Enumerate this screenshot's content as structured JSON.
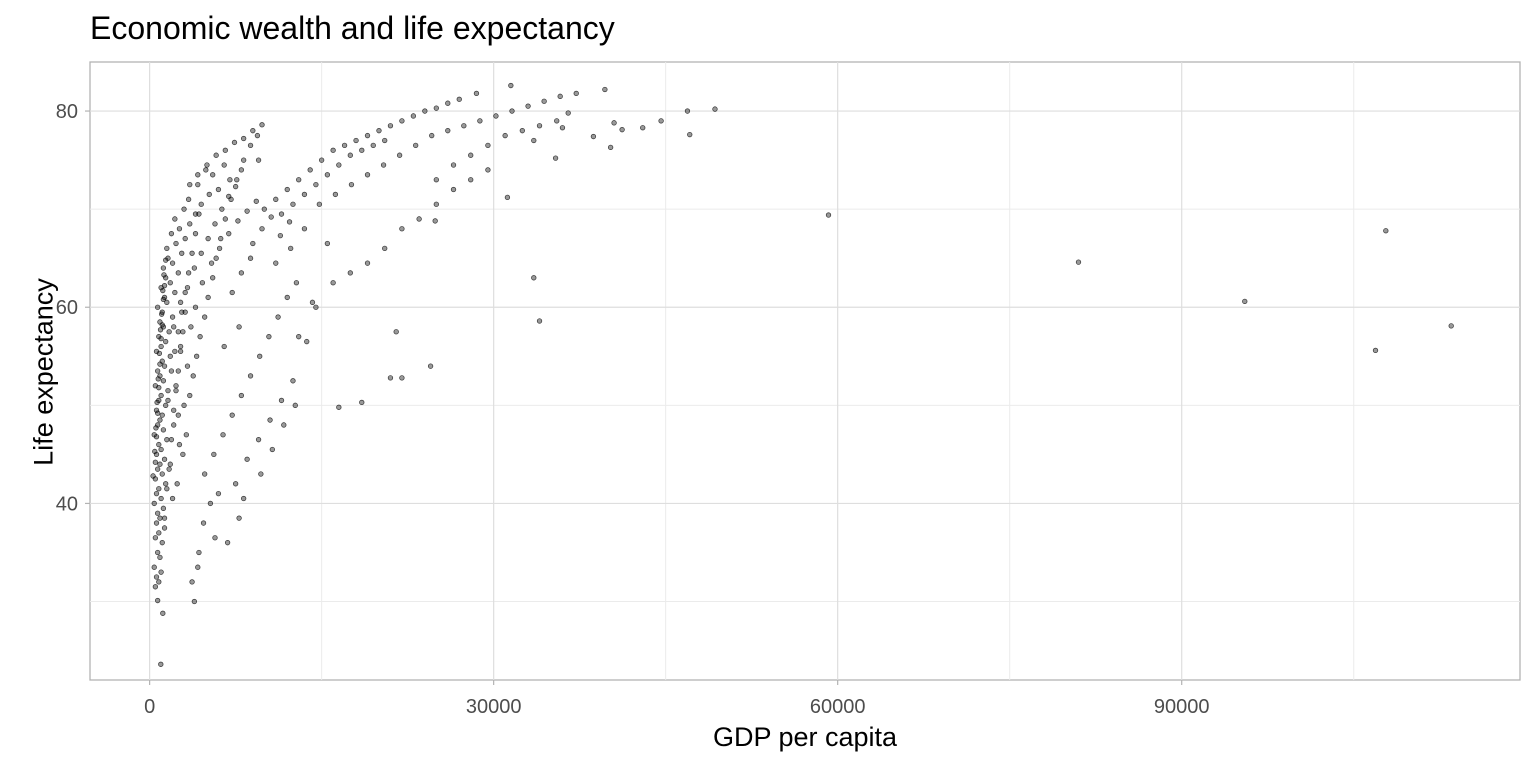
{
  "chart_data": {
    "type": "scatter",
    "title": "Economic wealth and life expectancy",
    "xlabel": "GDP per capita",
    "ylabel": "Life expectancy",
    "xlim": [
      -5200,
      119500
    ],
    "ylim": [
      22,
      85
    ],
    "x_ticks": [
      0,
      30000,
      60000,
      90000
    ],
    "y_ticks": [
      40,
      60,
      80
    ],
    "grid": true,
    "point_color": "#000000",
    "point_alpha": 0.4,
    "points": [
      [
        974,
        23.6
      ],
      [
        1150,
        28.8
      ],
      [
        3900,
        30.0
      ],
      [
        700,
        30.1
      ],
      [
        500,
        31.5
      ],
      [
        800,
        32.0
      ],
      [
        600,
        32.5
      ],
      [
        1000,
        33.0
      ],
      [
        400,
        33.5
      ],
      [
        900,
        34.5
      ],
      [
        700,
        35.0
      ],
      [
        1100,
        36.0
      ],
      [
        500,
        36.5
      ],
      [
        800,
        37.0
      ],
      [
        1300,
        37.5
      ],
      [
        600,
        38.0
      ],
      [
        900,
        38.5
      ],
      [
        700,
        39.0
      ],
      [
        1200,
        39.5
      ],
      [
        400,
        40.0
      ],
      [
        1000,
        40.5
      ],
      [
        600,
        41.0
      ],
      [
        800,
        41.5
      ],
      [
        1400,
        42.0
      ],
      [
        500,
        42.5
      ],
      [
        1100,
        43.0
      ],
      [
        700,
        43.5
      ],
      [
        900,
        44.0
      ],
      [
        1300,
        44.5
      ],
      [
        600,
        45.0
      ],
      [
        1000,
        45.5
      ],
      [
        800,
        46.0
      ],
      [
        1500,
        46.5
      ],
      [
        400,
        47.0
      ],
      [
        1200,
        47.5
      ],
      [
        700,
        48.0
      ],
      [
        900,
        48.5
      ],
      [
        1100,
        49.0
      ],
      [
        600,
        49.5
      ],
      [
        1400,
        50.0
      ],
      [
        800,
        50.5
      ],
      [
        1000,
        51.0
      ],
      [
        1600,
        51.5
      ],
      [
        500,
        52.0
      ],
      [
        1200,
        52.5
      ],
      [
        900,
        53.0
      ],
      [
        700,
        53.5
      ],
      [
        1300,
        54.0
      ],
      [
        1100,
        54.5
      ],
      [
        1800,
        55.0
      ],
      [
        600,
        55.5
      ],
      [
        1000,
        56.0
      ],
      [
        1400,
        56.5
      ],
      [
        800,
        57.0
      ],
      [
        1700,
        57.5
      ],
      [
        1200,
        58.0
      ],
      [
        900,
        58.5
      ],
      [
        2000,
        59.0
      ],
      [
        1100,
        59.5
      ],
      [
        700,
        60.0
      ],
      [
        1500,
        60.5
      ],
      [
        1300,
        61.0
      ],
      [
        2200,
        61.5
      ],
      [
        1000,
        62.0
      ],
      [
        1800,
        62.5
      ],
      [
        1400,
        63.0
      ],
      [
        2500,
        63.5
      ],
      [
        1200,
        64.0
      ],
      [
        2000,
        64.5
      ],
      [
        1600,
        65.0
      ],
      [
        2800,
        65.5
      ],
      [
        1500,
        66.0
      ],
      [
        2300,
        66.5
      ],
      [
        3100,
        67.0
      ],
      [
        1900,
        67.5
      ],
      [
        2600,
        68.0
      ],
      [
        3500,
        68.5
      ],
      [
        2200,
        69.0
      ],
      [
        4000,
        69.5
      ],
      [
        3000,
        70.0
      ],
      [
        4500,
        70.5
      ],
      [
        3400,
        71.0
      ],
      [
        5200,
        71.5
      ],
      [
        6000,
        72.0
      ],
      [
        4200,
        72.5
      ],
      [
        7000,
        73.0
      ],
      [
        5500,
        73.5
      ],
      [
        8000,
        74.0
      ],
      [
        6500,
        74.5
      ],
      [
        9500,
        75.0
      ],
      [
        2000,
        40.5
      ],
      [
        2400,
        42.0
      ],
      [
        1800,
        44.0
      ],
      [
        2600,
        46.0
      ],
      [
        2100,
        48.0
      ],
      [
        3000,
        50.0
      ],
      [
        2300,
        52.0
      ],
      [
        3300,
        54.0
      ],
      [
        2700,
        56.0
      ],
      [
        3600,
        58.0
      ],
      [
        2900,
        45.0
      ],
      [
        3200,
        47.0
      ],
      [
        2500,
        49.0
      ],
      [
        3500,
        51.0
      ],
      [
        3800,
        53.0
      ],
      [
        4100,
        55.0
      ],
      [
        4400,
        57.0
      ],
      [
        4800,
        59.0
      ],
      [
        5100,
        61.0
      ],
      [
        5500,
        63.0
      ],
      [
        5800,
        65.0
      ],
      [
        6200,
        67.0
      ],
      [
        6600,
        69.0
      ],
      [
        7100,
        71.0
      ],
      [
        7600,
        73.0
      ],
      [
        8200,
        75.0
      ],
      [
        8800,
        76.5
      ],
      [
        9400,
        77.5
      ],
      [
        4300,
        35.0
      ],
      [
        4700,
        38.0
      ],
      [
        5300,
        40.0
      ],
      [
        6000,
        41.0
      ],
      [
        4800,
        43.0
      ],
      [
        5600,
        45.0
      ],
      [
        6400,
        47.0
      ],
      [
        7200,
        49.0
      ],
      [
        8000,
        51.0
      ],
      [
        8800,
        53.0
      ],
      [
        9600,
        55.0
      ],
      [
        10400,
        57.0
      ],
      [
        11200,
        59.0
      ],
      [
        12000,
        61.0
      ],
      [
        7500,
        42.0
      ],
      [
        8500,
        44.5
      ],
      [
        9500,
        46.5
      ],
      [
        10500,
        48.5
      ],
      [
        11500,
        50.5
      ],
      [
        12500,
        52.5
      ],
      [
        6800,
        36.0
      ],
      [
        7800,
        38.5
      ],
      [
        3700,
        32.0
      ],
      [
        4200,
        33.5
      ],
      [
        5700,
        36.5
      ],
      [
        8200,
        40.5
      ],
      [
        9700,
        43.0
      ],
      [
        10700,
        45.5
      ],
      [
        11700,
        48.0
      ],
      [
        12700,
        50.0
      ],
      [
        13700,
        56.5
      ],
      [
        14500,
        60.0
      ],
      [
        16000,
        62.5
      ],
      [
        17500,
        63.5
      ],
      [
        19000,
        64.5
      ],
      [
        20500,
        66.0
      ],
      [
        22000,
        68.0
      ],
      [
        23500,
        69.0
      ],
      [
        25000,
        70.5
      ],
      [
        26500,
        72.0
      ],
      [
        28000,
        73.0
      ],
      [
        29500,
        74.0
      ],
      [
        16500,
        49.8
      ],
      [
        18500,
        50.3
      ],
      [
        21000,
        52.8
      ],
      [
        22000,
        52.8
      ],
      [
        24500,
        54.0
      ],
      [
        21500,
        57.5
      ],
      [
        13000,
        57.0
      ],
      [
        14200,
        60.5
      ],
      [
        12800,
        62.5
      ],
      [
        15500,
        66.5
      ],
      [
        11000,
        64.5
      ],
      [
        12300,
        66.0
      ],
      [
        13500,
        68.0
      ],
      [
        14800,
        70.5
      ],
      [
        16200,
        71.5
      ],
      [
        17600,
        72.5
      ],
      [
        19000,
        73.5
      ],
      [
        20400,
        74.5
      ],
      [
        21800,
        75.5
      ],
      [
        23200,
        76.5
      ],
      [
        24600,
        77.5
      ],
      [
        26000,
        78.0
      ],
      [
        27400,
        78.5
      ],
      [
        28800,
        79.0
      ],
      [
        30200,
        79.5
      ],
      [
        31600,
        80.0
      ],
      [
        33000,
        80.5
      ],
      [
        34400,
        81.0
      ],
      [
        35800,
        81.5
      ],
      [
        37200,
        81.8
      ],
      [
        25000,
        73.0
      ],
      [
        26500,
        74.5
      ],
      [
        28000,
        75.5
      ],
      [
        29500,
        76.5
      ],
      [
        31000,
        77.5
      ],
      [
        32500,
        78.0
      ],
      [
        34000,
        78.5
      ],
      [
        35500,
        79.0
      ],
      [
        33500,
        77.0
      ],
      [
        36000,
        78.3
      ],
      [
        10000,
        70.0
      ],
      [
        11000,
        71.0
      ],
      [
        12000,
        72.0
      ],
      [
        13000,
        73.0
      ],
      [
        14000,
        74.0
      ],
      [
        15000,
        75.0
      ],
      [
        16000,
        76.0
      ],
      [
        17000,
        76.5
      ],
      [
        18000,
        77.0
      ],
      [
        19000,
        77.5
      ],
      [
        20000,
        78.0
      ],
      [
        21000,
        78.5
      ],
      [
        22000,
        79.0
      ],
      [
        23000,
        79.5
      ],
      [
        24000,
        80.0
      ],
      [
        25000,
        80.3
      ],
      [
        26000,
        80.8
      ],
      [
        27000,
        81.2
      ],
      [
        28500,
        81.8
      ],
      [
        31500,
        82.6
      ],
      [
        39700,
        82.2
      ],
      [
        40500,
        78.8
      ],
      [
        41200,
        78.1
      ],
      [
        43000,
        78.3
      ],
      [
        44600,
        79.0
      ],
      [
        46900,
        80.0
      ],
      [
        47100,
        77.6
      ],
      [
        49300,
        80.2
      ],
      [
        38700,
        77.4
      ],
      [
        40200,
        76.3
      ],
      [
        36500,
        79.8
      ],
      [
        35400,
        75.2
      ],
      [
        31200,
        71.2
      ],
      [
        33500,
        63.0
      ],
      [
        34000,
        58.6
      ],
      [
        24900,
        68.8
      ],
      [
        59200,
        69.4
      ],
      [
        81000,
        64.6
      ],
      [
        95500,
        60.6
      ],
      [
        107800,
        67.8
      ],
      [
        106900,
        55.6
      ],
      [
        113500,
        58.1
      ],
      [
        4000,
        60.0
      ],
      [
        4600,
        62.5
      ],
      [
        5400,
        64.5
      ],
      [
        6100,
        66.0
      ],
      [
        6900,
        67.5
      ],
      [
        7700,
        68.8
      ],
      [
        8500,
        69.8
      ],
      [
        9300,
        70.8
      ],
      [
        2100,
        58.0
      ],
      [
        2700,
        60.5
      ],
      [
        3300,
        62.0
      ],
      [
        3900,
        64.0
      ],
      [
        4500,
        65.5
      ],
      [
        5100,
        67.0
      ],
      [
        5700,
        68.5
      ],
      [
        6300,
        70.0
      ],
      [
        6900,
        71.3
      ],
      [
        7500,
        72.3
      ],
      [
        1600,
        50.5
      ],
      [
        1900,
        53.5
      ],
      [
        2200,
        55.5
      ],
      [
        2500,
        57.5
      ],
      [
        2800,
        59.5
      ],
      [
        3100,
        61.5
      ],
      [
        3400,
        63.5
      ],
      [
        3700,
        65.5
      ],
      [
        4000,
        67.5
      ],
      [
        4300,
        69.5
      ],
      [
        1300,
        38.5
      ],
      [
        1500,
        41.5
      ],
      [
        1700,
        43.5
      ],
      [
        1900,
        46.5
      ],
      [
        2100,
        49.5
      ],
      [
        2300,
        51.5
      ],
      [
        2500,
        53.5
      ],
      [
        2700,
        55.5
      ],
      [
        2900,
        57.5
      ],
      [
        3100,
        59.5
      ],
      [
        500,
        44.2
      ],
      [
        600,
        46.8
      ],
      [
        700,
        49.2
      ],
      [
        800,
        51.8
      ],
      [
        900,
        54.2
      ],
      [
        1000,
        56.8
      ],
      [
        1100,
        58.2
      ],
      [
        1200,
        60.8
      ],
      [
        1300,
        62.2
      ],
      [
        1400,
        64.8
      ],
      [
        300,
        42.8
      ],
      [
        450,
        45.3
      ],
      [
        550,
        47.7
      ],
      [
        650,
        50.3
      ],
      [
        750,
        52.7
      ],
      [
        850,
        55.3
      ],
      [
        950,
        57.7
      ],
      [
        1050,
        59.3
      ],
      [
        1150,
        61.7
      ],
      [
        1250,
        63.3
      ],
      [
        5000,
        74.5
      ],
      [
        5800,
        75.5
      ],
      [
        6600,
        76.0
      ],
      [
        7400,
        76.8
      ],
      [
        8200,
        77.2
      ],
      [
        9000,
        78.0
      ],
      [
        9800,
        78.6
      ],
      [
        3500,
        72.5
      ],
      [
        4200,
        73.5
      ],
      [
        4900,
        74.0
      ],
      [
        11500,
        69.5
      ],
      [
        12500,
        70.5
      ],
      [
        13500,
        71.5
      ],
      [
        14500,
        72.5
      ],
      [
        15500,
        73.5
      ],
      [
        16500,
        74.5
      ],
      [
        17500,
        75.5
      ],
      [
        18500,
        76.0
      ],
      [
        19500,
        76.5
      ],
      [
        20500,
        77.0
      ],
      [
        9000,
        66.5
      ],
      [
        9800,
        68.0
      ],
      [
        10600,
        69.2
      ],
      [
        11400,
        67.3
      ],
      [
        12200,
        68.7
      ],
      [
        8000,
        63.5
      ],
      [
        8800,
        65.0
      ],
      [
        7200,
        61.5
      ],
      [
        7800,
        58.0
      ],
      [
        6500,
        56.0
      ]
    ]
  }
}
